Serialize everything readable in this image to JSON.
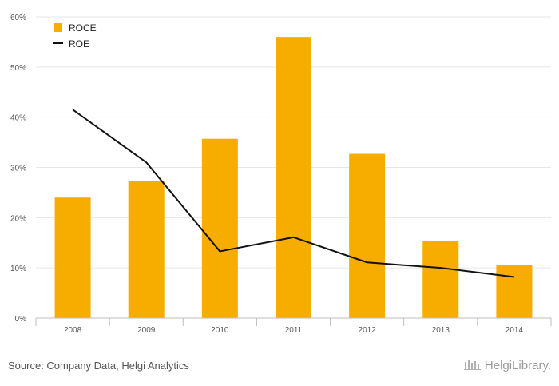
{
  "chart_data": {
    "type": "bar",
    "categories": [
      "2008",
      "2009",
      "2010",
      "2011",
      "2012",
      "2013",
      "2014"
    ],
    "series": [
      {
        "name": "ROCE",
        "kind": "bar",
        "color": "#f7ad00",
        "values": [
          24.0,
          27.3,
          35.7,
          56.0,
          32.7,
          15.3,
          10.5
        ]
      },
      {
        "name": "ROE",
        "kind": "line",
        "color": "#111111",
        "values": [
          41.5,
          31.0,
          13.3,
          16.1,
          11.1,
          10.0,
          8.2
        ]
      }
    ],
    "ylim": [
      0,
      60
    ],
    "yticks": [
      "0%",
      "10%",
      "20%",
      "30%",
      "40%",
      "50%",
      "60%"
    ],
    "ytick_values": [
      0,
      10,
      20,
      30,
      40,
      50,
      60
    ],
    "grid": true,
    "legend": "top-left"
  },
  "footer": {
    "source": "Source: Company Data, Helgi Analytics",
    "logo_text": "HelgiLibrary."
  }
}
